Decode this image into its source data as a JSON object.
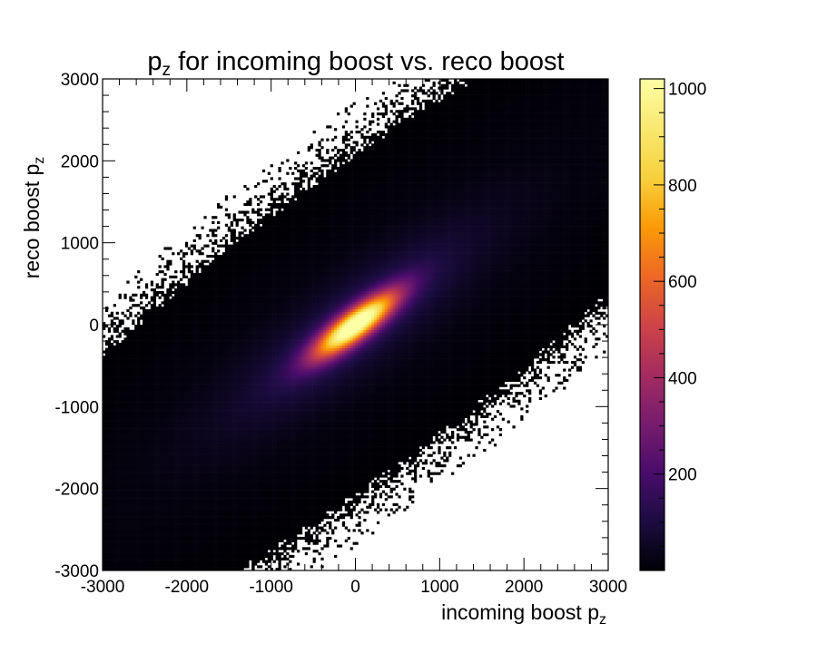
{
  "chart_data": {
    "type": "heatmap",
    "title": "p",
    "title_sub": "z",
    "title_rest": " for incoming boost vs. reco boost",
    "xlabel": "incoming boost p",
    "xlabel_sub": "z",
    "ylabel": "reco boost p",
    "ylabel_sub": "z",
    "xlim": [
      -3000,
      3000
    ],
    "ylim": [
      -3000,
      3000
    ],
    "xticks": [
      "-3000",
      "-2000",
      "-1000",
      "0",
      "1000",
      "2000",
      "3000"
    ],
    "yticks": [
      "-3000",
      "-2000",
      "-1000",
      "0",
      "1000",
      "2000",
      "3000"
    ],
    "colorbar": {
      "range": [
        0,
        1020
      ],
      "ticks": [
        "200",
        "400",
        "600",
        "800",
        "1000"
      ],
      "colormap": "inferno"
    },
    "distribution": {
      "description_kind": "correlated-2d-histogram",
      "slope": 0.78,
      "peak_counts": 1020,
      "core_sigma_major": 420,
      "core_sigma_minor": 120,
      "halo_sigma_minor": 620,
      "halo_sigma_major": 2600
    },
    "colors": {
      "background": "#ffffff",
      "low": "#000004",
      "mid": "#b53679",
      "high": "#fcffa4"
    }
  }
}
